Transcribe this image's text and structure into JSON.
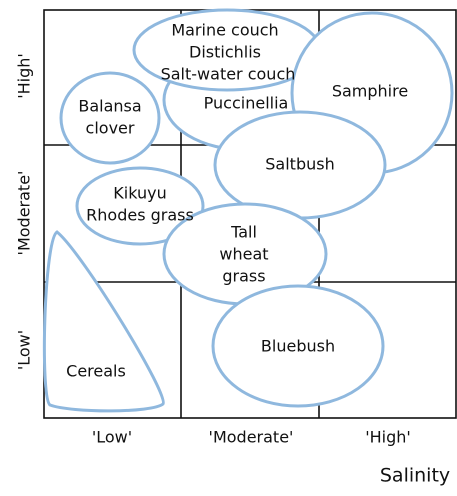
{
  "x_axis": {
    "title": "Salinity",
    "labels": [
      "'Low'",
      "'Moderate'",
      "'High'"
    ]
  },
  "y_axis": {
    "labels": [
      "'High'",
      "'Moderate'",
      "'Low'"
    ]
  },
  "regions": [
    {
      "lines": [
        "Puccinellia"
      ]
    },
    {
      "lines": [
        "Marine couch",
        "Distichlis",
        "Salt-water couch"
      ]
    },
    {
      "lines": [
        "Samphire"
      ]
    },
    {
      "lines": [
        "Balansa",
        "clover"
      ]
    },
    {
      "lines": [
        "Saltbush"
      ]
    },
    {
      "lines": [
        "Kikuyu",
        "Rhodes grass"
      ]
    },
    {
      "lines": [
        "Tall",
        "wheat",
        "grass"
      ]
    },
    {
      "lines": [
        "Bluebush"
      ]
    },
    {
      "lines": [
        "Cereals"
      ]
    }
  ]
}
